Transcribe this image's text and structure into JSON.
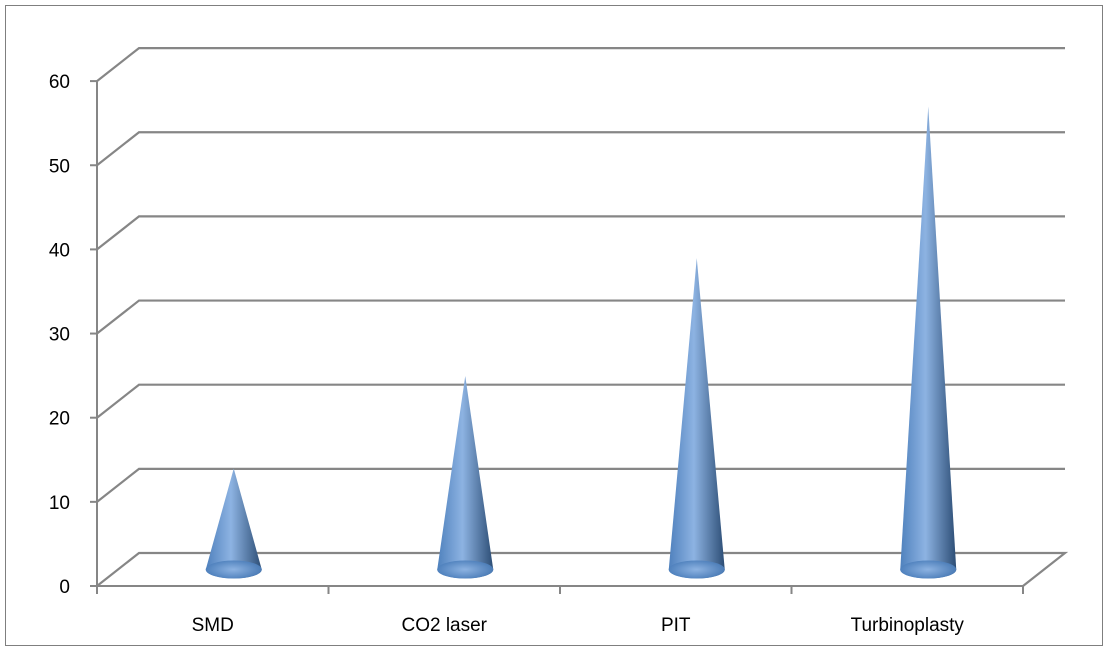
{
  "chart_data": {
    "type": "bar",
    "style": "3d-cone",
    "title": "",
    "xlabel": "",
    "ylabel": "",
    "categories": [
      "SMD",
      "CO2 laser",
      "PIT",
      "Turbinoplasty"
    ],
    "values": [
      12,
      23,
      37,
      55
    ],
    "ylim": [
      0,
      60
    ],
    "yticks": [
      "0",
      "10",
      "20",
      "30",
      "40",
      "50",
      "60"
    ],
    "grid": true,
    "legend": "none",
    "colors": {
      "cone_light": "#8db3e2",
      "cone_mid": "#4f81bd",
      "cone_dark": "#2c4d75",
      "gridline": "#868686"
    }
  }
}
